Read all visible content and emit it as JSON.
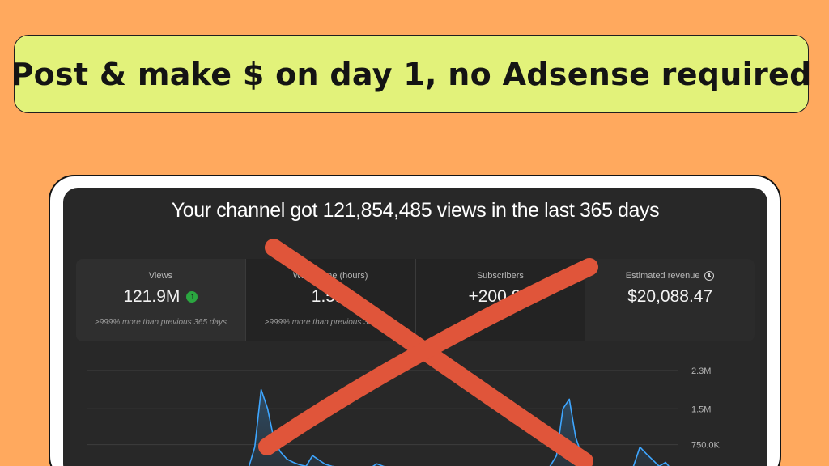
{
  "banner": {
    "text": "Post & make $ on day 1, no Adsense required"
  },
  "dashboard": {
    "headline": "Your channel got 121,854,485 views in the last 365 days",
    "stats": [
      {
        "label": "Views",
        "value": "121.9M",
        "compare": ">999% more than previous 365 days",
        "icon": "arrow-up-icon"
      },
      {
        "label": "Watch time (hours)",
        "value": "1.5M",
        "compare": ">999% more than previous 365 days"
      },
      {
        "label": "Subscribers",
        "value": "+200.8K",
        "compare": ""
      },
      {
        "label": "Estimated revenue",
        "value": "$20,088.47",
        "compare": "",
        "icon": "clock-icon"
      }
    ]
  },
  "chart_data": {
    "type": "line",
    "series": [
      {
        "values": [
          50,
          70,
          120,
          250,
          700,
          1900,
          1500,
          850,
          600,
          450,
          380,
          330,
          300,
          520,
          430,
          340,
          300,
          280,
          260,
          270,
          240,
          280,
          260,
          350,
          300,
          260,
          240,
          280,
          240,
          250,
          230,
          220,
          260,
          230,
          220,
          250,
          240,
          230,
          260,
          220,
          240,
          230,
          250,
          220,
          230,
          260,
          210,
          230,
          280,
          240,
          300,
          520,
          1500,
          1700,
          900,
          500,
          320,
          260,
          250,
          280,
          240,
          260,
          230,
          300,
          700,
          560,
          430,
          300,
          380,
          220,
          240
        ]
      }
    ],
    "yticks": [
      "2.3M",
      "1.5M",
      "750.0K"
    ],
    "ytick_values": [
      2300000,
      1500000,
      750000
    ],
    "ylim": [
      0,
      2400000
    ],
    "grid": true
  },
  "colors": {
    "background": "#FFA95E",
    "banner": "#E2F27A",
    "panel": "#282828",
    "line": "#3ea6ff",
    "cross": "#E0553A",
    "up": "#2ba640"
  }
}
